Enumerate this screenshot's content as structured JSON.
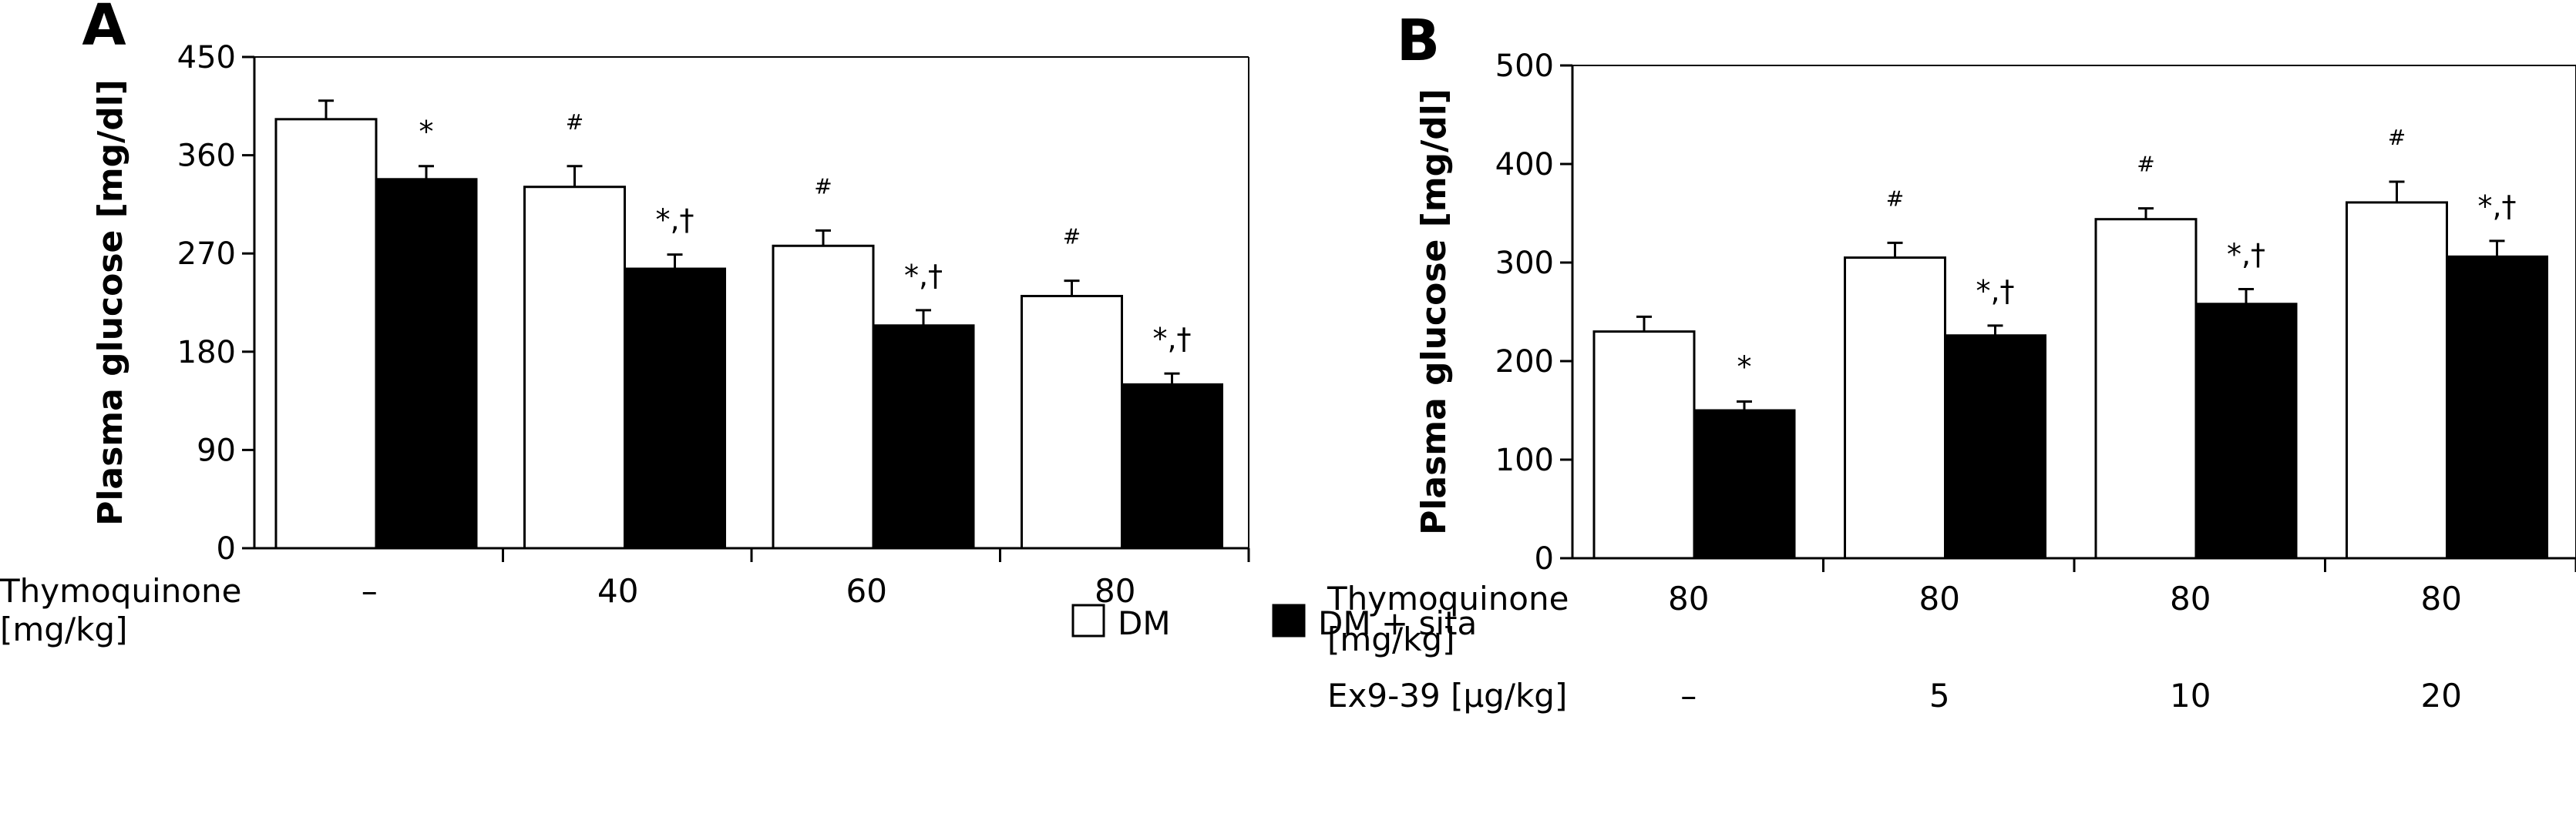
{
  "chart_data": [
    {
      "type": "bar",
      "panel": "A",
      "ylabel": "Plasma glucose [mg/dl]",
      "ylim": [
        0,
        450
      ],
      "yticks": [
        0,
        90,
        180,
        270,
        360,
        450
      ],
      "row_labels": [
        {
          "text": "Thymoquinone",
          "text2": "[mg/kg]",
          "categories": [
            "–",
            "40",
            "60",
            "80"
          ]
        }
      ],
      "series": [
        {
          "name": "DM",
          "color": "#ffffff",
          "values": [
            393,
            331,
            277,
            231
          ],
          "errors": [
            17,
            19,
            14,
            14
          ]
        },
        {
          "name": "DM + sita",
          "color": "#000000",
          "values": [
            338,
            256,
            204,
            150
          ],
          "errors": [
            12,
            13,
            14,
            10
          ]
        }
      ],
      "annotations": [
        {
          "series": 0,
          "group": 1,
          "text": "#"
        },
        {
          "series": 0,
          "group": 2,
          "text": "#"
        },
        {
          "series": 0,
          "group": 3,
          "text": "#"
        },
        {
          "series": 1,
          "group": 0,
          "text": "*"
        },
        {
          "series": 1,
          "group": 1,
          "text": "*,†"
        },
        {
          "series": 1,
          "group": 2,
          "text": "*,†"
        },
        {
          "series": 1,
          "group": 3,
          "text": "*,†"
        }
      ]
    },
    {
      "type": "bar",
      "panel": "B",
      "ylabel": "Plasma glucose [mg/dl]",
      "ylim": [
        0,
        500
      ],
      "yticks": [
        0,
        100,
        200,
        300,
        400,
        500
      ],
      "row_labels": [
        {
          "text": "Thymoquinone",
          "text2": "[mg/kg]",
          "categories": [
            "80",
            "80",
            "80",
            "80"
          ]
        },
        {
          "text": "Ex9-39 [μg/kg]",
          "text2": "",
          "categories": [
            "–",
            "5",
            "10",
            "20"
          ]
        }
      ],
      "series": [
        {
          "name": "DM",
          "color": "#ffffff",
          "values": [
            230,
            305,
            344,
            361
          ],
          "errors": [
            15,
            15,
            11,
            21
          ]
        },
        {
          "name": "DM + sita",
          "color": "#000000",
          "values": [
            150,
            226,
            258,
            306
          ],
          "errors": [
            9,
            10,
            15,
            16
          ]
        }
      ],
      "annotations": [
        {
          "series": 0,
          "group": 1,
          "text": "#"
        },
        {
          "series": 0,
          "group": 2,
          "text": "#"
        },
        {
          "series": 0,
          "group": 3,
          "text": "#"
        },
        {
          "series": 1,
          "group": 0,
          "text": "*"
        },
        {
          "series": 1,
          "group": 1,
          "text": "*,†"
        },
        {
          "series": 1,
          "group": 2,
          "text": "*,†"
        },
        {
          "series": 1,
          "group": 3,
          "text": "*,†"
        }
      ]
    }
  ],
  "legend": [
    {
      "label": "DM",
      "color": "#ffffff"
    },
    {
      "label": "DM + sita",
      "color": "#000000"
    }
  ]
}
